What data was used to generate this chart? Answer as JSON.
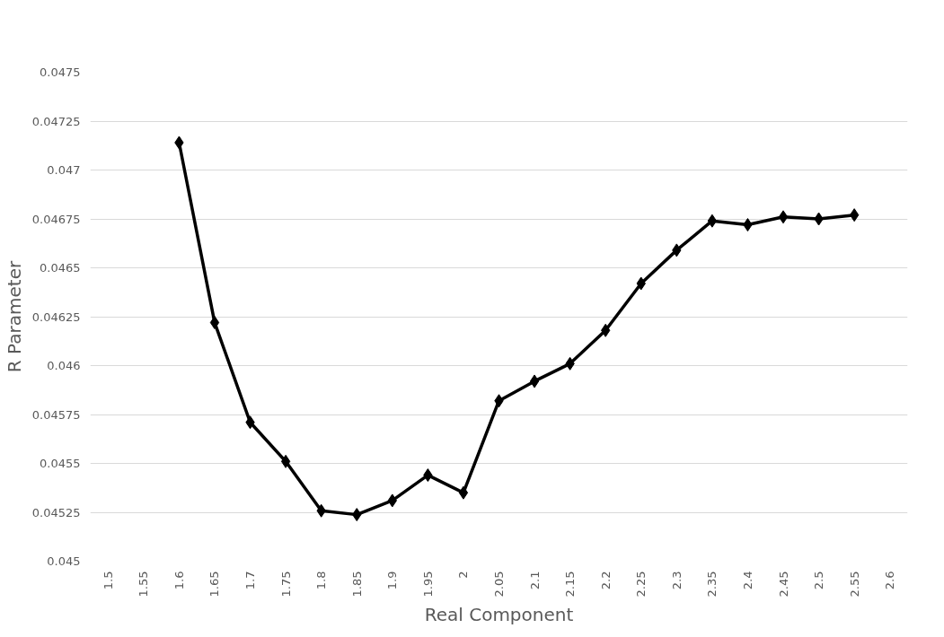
{
  "chart_data": {
    "type": "line",
    "xlabel": "Real Component",
    "ylabel": "R Parameter",
    "categories": [
      "1.5",
      "1.55",
      "1.6",
      "1.65",
      "1.7",
      "1.75",
      "1.8",
      "1.85",
      "1.9",
      "1.95",
      "2",
      "2.05",
      "2.1",
      "2.15",
      "2.2",
      "2.25",
      "2.3",
      "2.35",
      "2.4",
      "2.45",
      "2.5",
      "2.55",
      "2.6"
    ],
    "series": [
      {
        "color": "#000000",
        "values": [
          null,
          null,
          0.04714,
          0.04622,
          0.04571,
          0.04551,
          0.045258,
          0.045238,
          0.04531,
          0.04544,
          0.04535,
          0.04582,
          0.04592,
          0.04601,
          0.04618,
          0.04642,
          0.04659,
          0.04674,
          0.04672,
          0.04676,
          0.04675,
          0.04677,
          null
        ]
      }
    ],
    "ylim": [
      0.045,
      0.0475
    ],
    "yticks": [
      0.045,
      0.04525,
      0.0455,
      0.04575,
      0.046,
      0.04625,
      0.0465,
      0.04675,
      0.047,
      0.04725,
      0.0475
    ],
    "grid": "y",
    "marker": "diamond",
    "line_style": "solid"
  }
}
